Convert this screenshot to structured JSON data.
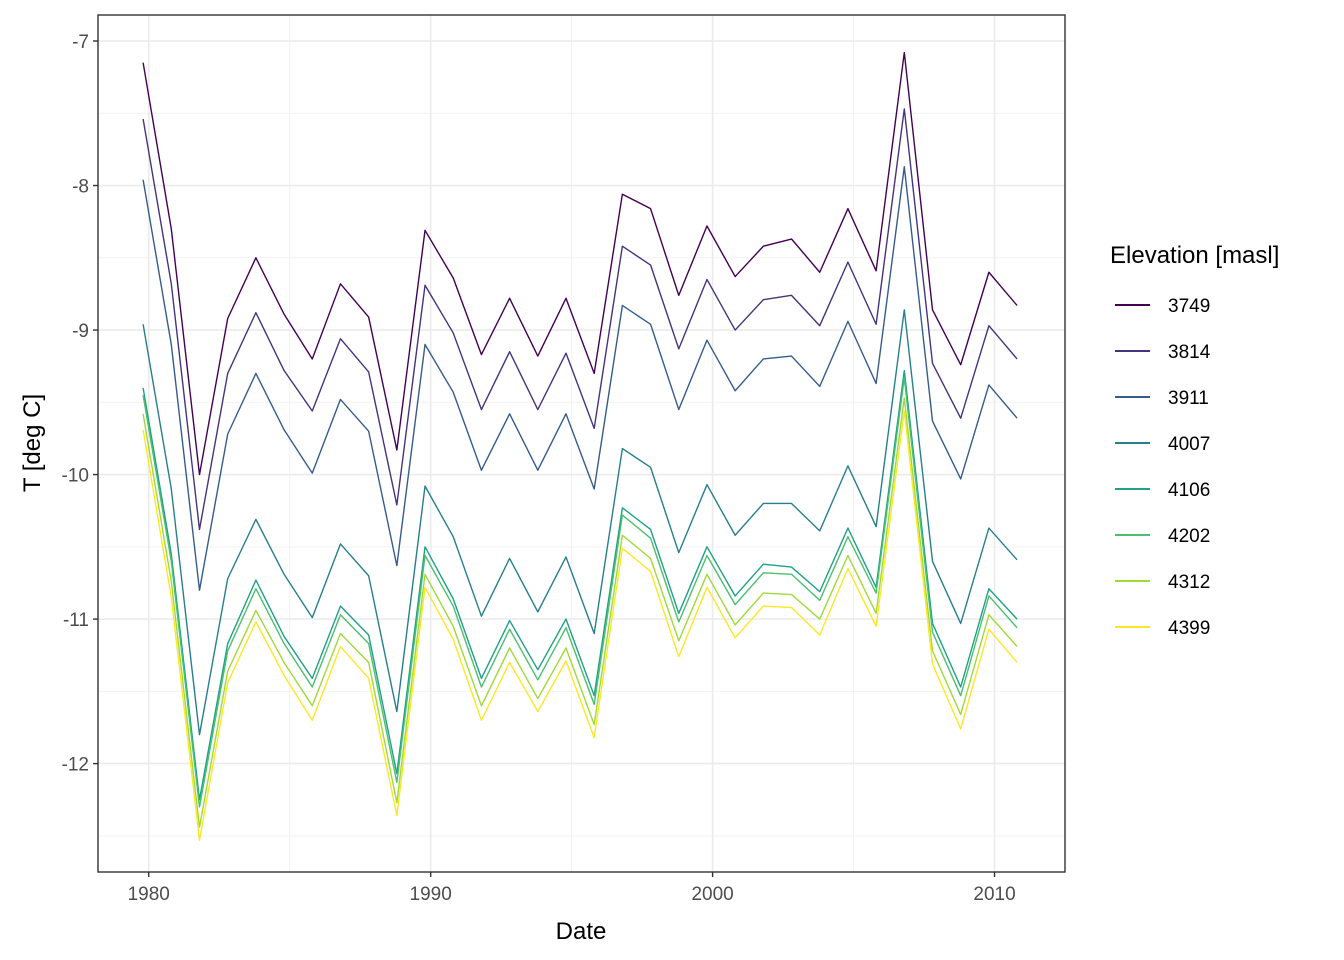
{
  "chart_data": {
    "type": "line",
    "title": "",
    "xlabel": "Date",
    "ylabel": "T [deg C]",
    "xlim": [
      1978.2,
      2012.5
    ],
    "ylim": [
      -12.75,
      -6.82
    ],
    "x_ticks": [
      1980,
      1990,
      2000,
      2010
    ],
    "y_ticks": [
      -12,
      -11,
      -10,
      -9,
      -8,
      -7
    ],
    "grid": true,
    "legend_title": "Elevation [masl]",
    "legend_position": "right",
    "x": [
      1979.8,
      1980.8,
      1981.8,
      1982.8,
      1983.8,
      1984.8,
      1985.8,
      1986.8,
      1987.8,
      1988.8,
      1989.8,
      1990.8,
      1991.8,
      1992.8,
      1993.8,
      1994.8,
      1995.8,
      1996.8,
      1997.8,
      1998.8,
      1999.8,
      2000.8,
      2001.8,
      2002.8,
      2003.8,
      2004.8,
      2005.8,
      2006.8,
      2007.8,
      2008.8,
      2009.8,
      2010.8
    ],
    "series": [
      {
        "name": "3749",
        "color": "#440154",
        "values": [
          -7.15,
          -8.3,
          -10.0,
          -8.92,
          -8.5,
          -8.89,
          -9.2,
          -8.68,
          -8.91,
          -9.83,
          -8.31,
          -8.64,
          -9.17,
          -8.78,
          -9.18,
          -8.78,
          -9.3,
          -8.06,
          -8.16,
          -8.76,
          -8.28,
          -8.63,
          -8.42,
          -8.37,
          -8.6,
          -8.16,
          -8.59,
          -7.08,
          -8.86,
          -9.24,
          -8.6,
          -8.83
        ]
      },
      {
        "name": "3814",
        "color": "#46337E",
        "values": [
          -7.54,
          -8.68,
          -10.38,
          -9.3,
          -8.88,
          -9.28,
          -9.56,
          -9.06,
          -9.29,
          -10.21,
          -8.69,
          -9.02,
          -9.55,
          -9.15,
          -9.55,
          -9.16,
          -9.68,
          -8.42,
          -8.55,
          -9.13,
          -8.65,
          -9.0,
          -8.79,
          -8.76,
          -8.97,
          -8.53,
          -8.96,
          -7.47,
          -9.23,
          -9.61,
          -8.97,
          -9.2
        ]
      },
      {
        "name": "3911",
        "color": "#365C8D",
        "values": [
          -7.96,
          -9.1,
          -10.8,
          -9.72,
          -9.3,
          -9.69,
          -9.99,
          -9.48,
          -9.7,
          -10.63,
          -9.1,
          -9.43,
          -9.97,
          -9.58,
          -9.97,
          -9.58,
          -10.1,
          -8.83,
          -8.96,
          -9.55,
          -9.07,
          -9.42,
          -9.2,
          -9.18,
          -9.39,
          -8.94,
          -9.37,
          -7.87,
          -9.63,
          -10.03,
          -9.38,
          -9.61
        ]
      },
      {
        "name": "4007",
        "color": "#277F8E",
        "values": [
          -8.96,
          -10.1,
          -11.8,
          -10.72,
          -10.31,
          -10.69,
          -10.99,
          -10.48,
          -10.7,
          -11.64,
          -10.08,
          -10.43,
          -10.98,
          -10.58,
          -10.95,
          -10.57,
          -11.1,
          -9.82,
          -9.95,
          -10.54,
          -10.07,
          -10.42,
          -10.2,
          -10.2,
          -10.39,
          -9.94,
          -10.36,
          -8.86,
          -10.6,
          -11.03,
          -10.37,
          -10.59
        ]
      },
      {
        "name": "4106",
        "color": "#1FA187",
        "values": [
          -9.4,
          -10.55,
          -12.25,
          -11.17,
          -10.73,
          -11.12,
          -11.41,
          -10.91,
          -11.11,
          -12.07,
          -10.5,
          -10.86,
          -11.41,
          -11.01,
          -11.35,
          -11.0,
          -11.53,
          -10.23,
          -10.38,
          -10.96,
          -10.5,
          -10.84,
          -10.62,
          -10.64,
          -10.81,
          -10.37,
          -10.78,
          -9.28,
          -11.03,
          -11.47,
          -10.79,
          -11.0
        ]
      },
      {
        "name": "4202",
        "color": "#4AC16D",
        "values": [
          -9.45,
          -10.6,
          -12.3,
          -11.22,
          -10.79,
          -11.17,
          -11.47,
          -10.97,
          -11.17,
          -12.13,
          -10.56,
          -10.91,
          -11.47,
          -11.07,
          -11.42,
          -11.06,
          -11.59,
          -10.28,
          -10.44,
          -11.02,
          -10.56,
          -10.9,
          -10.68,
          -10.69,
          -10.87,
          -10.43,
          -10.82,
          -9.33,
          -11.09,
          -11.53,
          -10.84,
          -11.06
        ]
      },
      {
        "name": "4312",
        "color": "#A0DA39",
        "values": [
          -9.58,
          -10.74,
          -12.44,
          -11.36,
          -10.94,
          -11.3,
          -11.6,
          -11.1,
          -11.3,
          -12.27,
          -10.69,
          -11.05,
          -11.6,
          -11.2,
          -11.55,
          -11.2,
          -11.73,
          -10.42,
          -10.58,
          -11.15,
          -10.69,
          -11.04,
          -10.82,
          -10.83,
          -11.0,
          -10.56,
          -10.96,
          -9.47,
          -11.22,
          -11.66,
          -10.97,
          -11.19
        ]
      },
      {
        "name": "4399",
        "color": "#FDE725",
        "values": [
          -9.69,
          -10.85,
          -12.53,
          -11.44,
          -11.02,
          -11.39,
          -11.7,
          -11.19,
          -11.41,
          -12.36,
          -10.78,
          -11.14,
          -11.7,
          -11.3,
          -11.64,
          -11.29,
          -11.82,
          -10.51,
          -10.67,
          -11.26,
          -10.78,
          -11.13,
          -10.91,
          -10.92,
          -11.11,
          -10.65,
          -11.05,
          -9.56,
          -11.31,
          -11.76,
          -11.07,
          -11.3
        ]
      }
    ]
  }
}
